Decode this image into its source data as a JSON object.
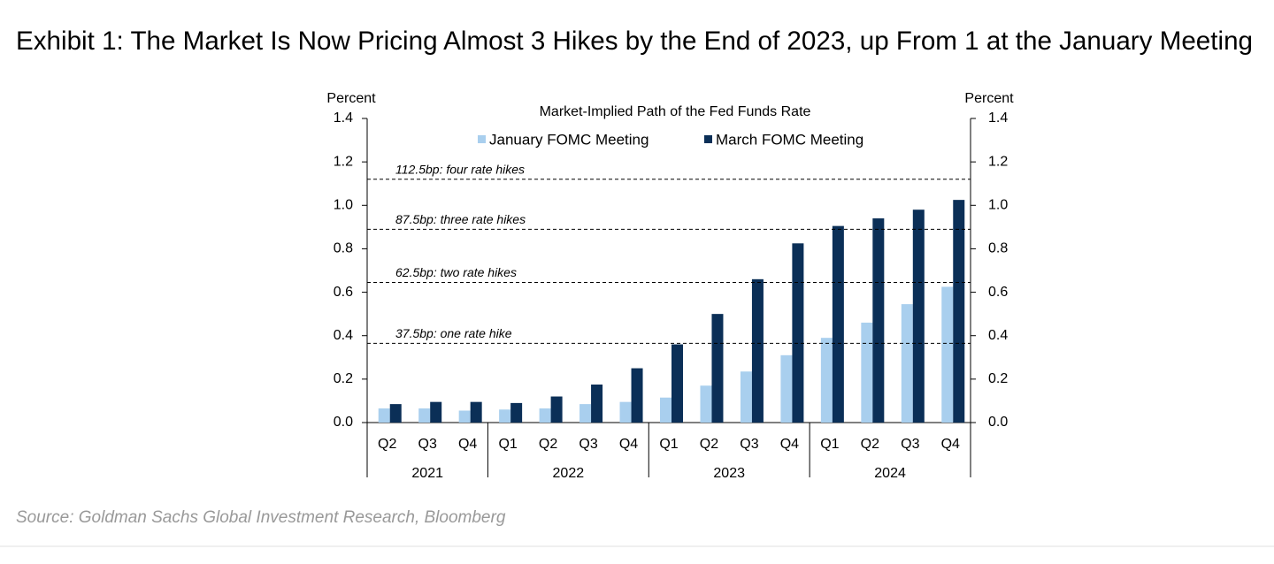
{
  "chart_data": {
    "type": "bar",
    "exhibit_title": "Exhibit 1: The Market Is Now Pricing Almost 3 Hikes by the End of 2023, up From 1 at the January Meeting",
    "title": "Market-Implied  Path of the Fed Funds Rate",
    "ylabel": "Percent",
    "y2label": "Percent",
    "categories": [
      "Q2",
      "Q3",
      "Q4",
      "Q1",
      "Q2",
      "Q3",
      "Q4",
      "Q1",
      "Q2",
      "Q3",
      "Q4",
      "Q1",
      "Q2",
      "Q3",
      "Q4"
    ],
    "groups": [
      {
        "label": "2021",
        "count": 3
      },
      {
        "label": "2022",
        "count": 4
      },
      {
        "label": "2023",
        "count": 4
      },
      {
        "label": "2024",
        "count": 4
      }
    ],
    "series": [
      {
        "name": "January FOMC Meeting",
        "color": "#a9cfee",
        "values": [
          0.065,
          0.065,
          0.055,
          0.06,
          0.065,
          0.085,
          0.095,
          0.115,
          0.17,
          0.235,
          0.31,
          0.39,
          0.46,
          0.545,
          0.625
        ]
      },
      {
        "name": "March FOMC Meeting",
        "color": "#0b2f57",
        "values": [
          0.085,
          0.095,
          0.095,
          0.09,
          0.12,
          0.175,
          0.25,
          0.36,
          0.5,
          0.66,
          0.825,
          0.905,
          0.94,
          0.98,
          1.025
        ]
      }
    ],
    "annotations": [
      {
        "label": "112.5bp: four rate hikes",
        "value": 1.12
      },
      {
        "label": "87.5bp: three rate hikes",
        "value": 0.89
      },
      {
        "label": "62.5bp: two rate hikes",
        "value": 0.645
      },
      {
        "label": "37.5bp: one rate hike",
        "value": 0.365
      }
    ],
    "ylim": [
      0,
      1.4
    ],
    "yticks": [
      {
        "value": 0,
        "label": "0.0"
      },
      0.2,
      0.4,
      0.6,
      0.8,
      {
        "value": 1,
        "label": "1.0"
      },
      1.2,
      1.4
    ],
    "y2lim": [
      0,
      1.4
    ],
    "y2ticks": [
      {
        "value": 0,
        "label": "0.0"
      },
      0.2,
      0.4,
      0.6,
      0.8,
      {
        "value": 1,
        "label": "1.0"
      },
      1.2,
      1.4
    ],
    "legend": "top",
    "source": "Source: Goldman Sachs Global Investment Research, Bloomberg"
  }
}
